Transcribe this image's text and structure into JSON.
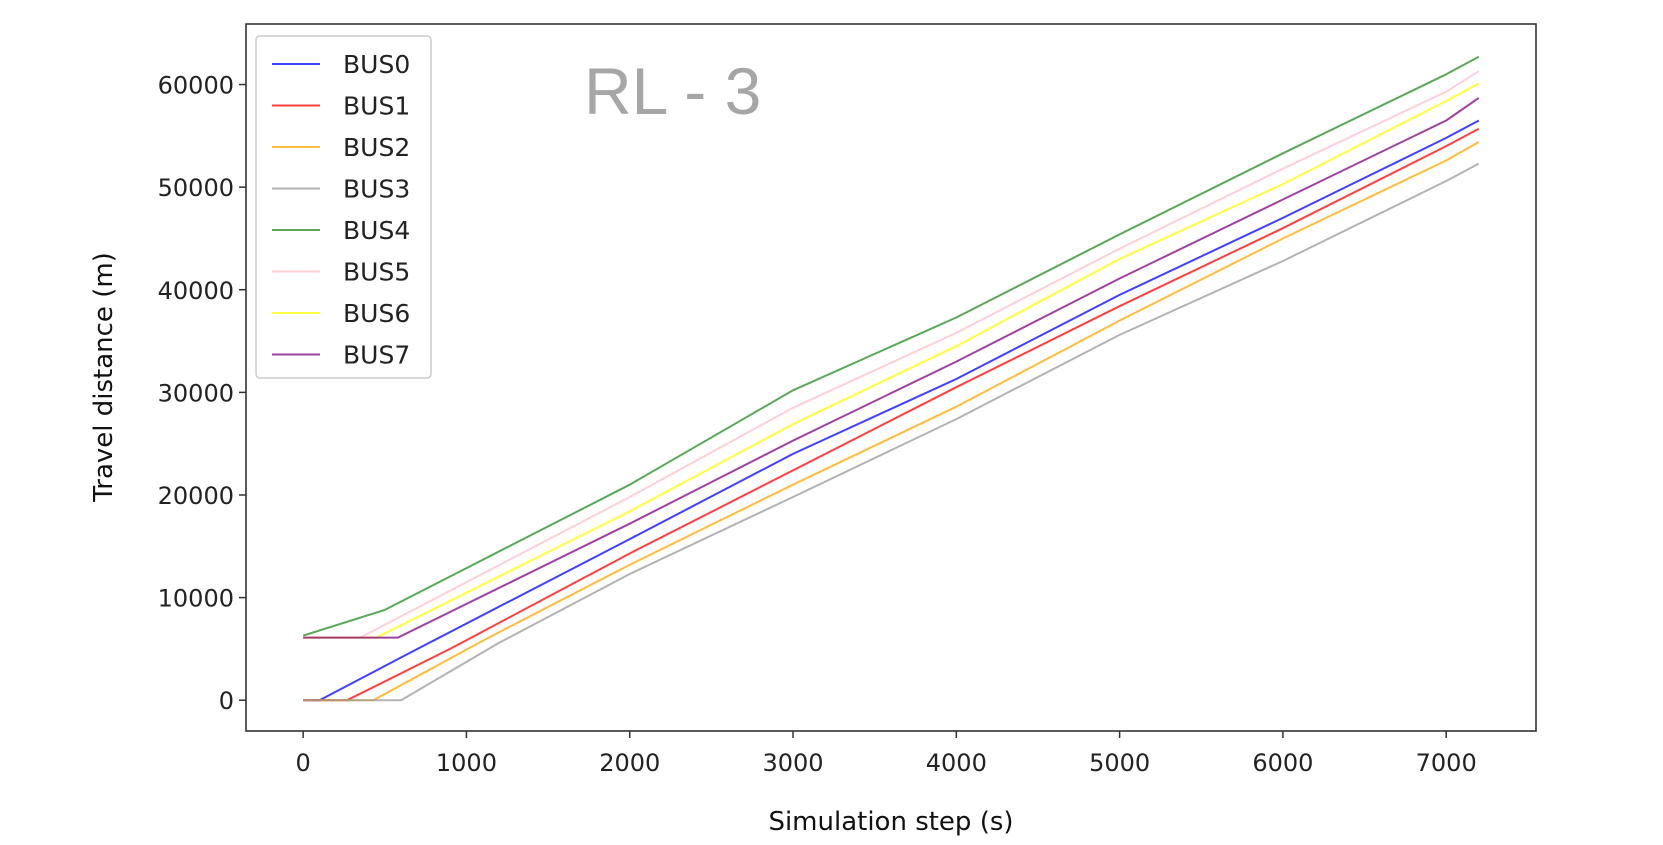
{
  "chart_data": {
    "type": "line",
    "overlay_text": "RL - 3",
    "xlabel": "Simulation step (s)",
    "ylabel": "Travel distance (m)",
    "xlim": [
      -350,
      7550
    ],
    "ylim": [
      -3000,
      65900
    ],
    "xticks": [
      0,
      1000,
      2000,
      3000,
      4000,
      5000,
      6000,
      7000
    ],
    "yticks": [
      0,
      10000,
      20000,
      30000,
      40000,
      50000,
      60000
    ],
    "xtick_labels": [
      "0",
      "1000",
      "2000",
      "3000",
      "4000",
      "5000",
      "6000",
      "7000"
    ],
    "ytick_labels": [
      "0",
      "10000",
      "20000",
      "30000",
      "40000",
      "50000",
      "60000"
    ],
    "grid": false,
    "legend_position": "top-left",
    "series": [
      {
        "name": "BUS0",
        "color": "#0000ff",
        "x": [
          0,
          100,
          700,
          2000,
          3000,
          4000,
          5000,
          6000,
          7000,
          7200
        ],
        "y": [
          0,
          0,
          5000,
          15700,
          24000,
          31300,
          39500,
          47000,
          54800,
          56500
        ]
      },
      {
        "name": "BUS1",
        "color": "#ff0000",
        "x": [
          0,
          270,
          900,
          2000,
          3000,
          4000,
          5000,
          6000,
          7000,
          7200
        ],
        "y": [
          0,
          0,
          5000,
          14300,
          22400,
          30500,
          38400,
          46000,
          54000,
          55700
        ]
      },
      {
        "name": "BUS2",
        "color": "#ffa500",
        "x": [
          0,
          430,
          1100,
          2000,
          3000,
          4000,
          5000,
          6000,
          7000,
          7200
        ],
        "y": [
          0,
          0,
          5800,
          13200,
          21000,
          28600,
          37000,
          45000,
          52600,
          54400
        ]
      },
      {
        "name": "BUS3",
        "color": "#999999",
        "x": [
          0,
          600,
          1200,
          2000,
          3000,
          4000,
          5000,
          6000,
          7000,
          7200
        ],
        "y": [
          0,
          0,
          5600,
          12300,
          19800,
          27400,
          35600,
          42800,
          50600,
          52300
        ]
      },
      {
        "name": "BUS4",
        "color": "#228b22",
        "x": [
          0,
          500,
          2000,
          3000,
          4000,
          5000,
          6000,
          7000,
          7200
        ],
        "y": [
          6300,
          8800,
          21000,
          30200,
          37300,
          45400,
          53300,
          61000,
          62700
        ]
      },
      {
        "name": "BUS5",
        "color": "#ffc0cb",
        "x": [
          0,
          350,
          2000,
          3000,
          4000,
          5000,
          6000,
          7000,
          7200
        ],
        "y": [
          6100,
          6100,
          19800,
          28500,
          35800,
          44000,
          51800,
          59300,
          61300
        ]
      },
      {
        "name": "BUS6",
        "color": "#ffff00",
        "x": [
          0,
          450,
          2000,
          3000,
          4000,
          5000,
          6000,
          7000,
          7200
        ],
        "y": [
          6100,
          6100,
          18400,
          26900,
          34500,
          43000,
          50300,
          58400,
          60100
        ]
      },
      {
        "name": "BUS7",
        "color": "#800080",
        "x": [
          0,
          580,
          2000,
          3000,
          4000,
          5000,
          6000,
          7000,
          7200
        ],
        "y": [
          6100,
          6100,
          17200,
          25300,
          33000,
          41100,
          48800,
          56500,
          58700
        ]
      }
    ]
  }
}
